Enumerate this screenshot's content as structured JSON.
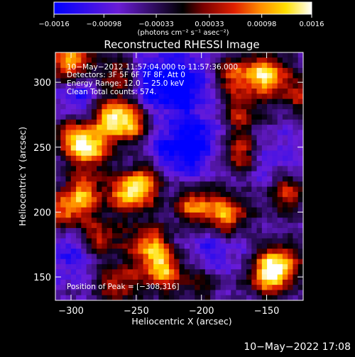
{
  "chart_data": {
    "type": "heatmap",
    "title": "Reconstructed RHESSI Image",
    "xlabel": "Heliocentric X (arcsec)",
    "ylabel": "Heliocentric Y (arcsec)",
    "xlim": [
      -312,
      -122
    ],
    "ylim": [
      132,
      323
    ],
    "x_ticks": [
      -300,
      -250,
      -200,
      -150
    ],
    "x_tick_labels": [
      "−300",
      "−250",
      "−200",
      "−150"
    ],
    "y_ticks": [
      150,
      200,
      250,
      300
    ],
    "y_tick_labels": [
      "150",
      "200",
      "250",
      "300"
    ],
    "colorbar": {
      "ticks": [
        -0.0016,
        -0.00098,
        -0.00033,
        0.00033,
        0.00098,
        0.0016
      ],
      "tick_labels": [
        "−0.0016",
        "−0.00098",
        "−0.00033",
        "0.00033",
        "0.00098",
        "0.0016"
      ],
      "unit_label": "(photons cm⁻² s⁻¹ asec⁻²)",
      "colors": [
        "#0000ff",
        "#6a1cd6",
        "#000000",
        "#7a0000",
        "#e02000",
        "#ff8c00",
        "#ffe000",
        "#ffffff"
      ]
    },
    "annotations": [
      "10−May−2012 11:57:04.000 to 11:57:36.000",
      "Detectors: 3F 5F 6F 7F 8F, Att 0",
      "Energy Range: 12.0 − 25.0 keV",
      "Clean    Total counts: 574.",
      "Position of Peak = [−308,316]"
    ],
    "peak": {
      "x": -308,
      "y": 316
    },
    "bright_sources": [
      {
        "x": -300,
        "y": 315,
        "intensity": 0.95
      },
      {
        "x": -150,
        "y": 305,
        "intensity": 0.95
      },
      {
        "x": -175,
        "y": 305,
        "intensity": 0.6
      },
      {
        "x": -265,
        "y": 305,
        "intensity": 0.65
      },
      {
        "x": -270,
        "y": 275,
        "intensity": 0.85
      },
      {
        "x": -255,
        "y": 268,
        "intensity": 0.75
      },
      {
        "x": -285,
        "y": 250,
        "intensity": 0.9
      },
      {
        "x": -300,
        "y": 258,
        "intensity": 0.6
      },
      {
        "x": -255,
        "y": 215,
        "intensity": 0.9
      },
      {
        "x": -240,
        "y": 225,
        "intensity": 0.6
      },
      {
        "x": -290,
        "y": 215,
        "intensity": 0.7
      },
      {
        "x": -305,
        "y": 200,
        "intensity": 0.7
      },
      {
        "x": -205,
        "y": 205,
        "intensity": 0.75
      },
      {
        "x": -180,
        "y": 198,
        "intensity": 0.85
      },
      {
        "x": -170,
        "y": 245,
        "intensity": 0.7
      },
      {
        "x": -170,
        "y": 275,
        "intensity": 0.5
      },
      {
        "x": -135,
        "y": 215,
        "intensity": 0.6
      },
      {
        "x": -278,
        "y": 180,
        "intensity": 0.65
      },
      {
        "x": -240,
        "y": 175,
        "intensity": 0.75
      },
      {
        "x": -230,
        "y": 155,
        "intensity": 0.85
      },
      {
        "x": -140,
        "y": 160,
        "intensity": 0.8
      },
      {
        "x": -150,
        "y": 150,
        "intensity": 0.7
      },
      {
        "x": -265,
        "y": 145,
        "intensity": 0.6
      },
      {
        "x": -200,
        "y": 145,
        "intensity": 0.4
      },
      {
        "x": -125,
        "y": 290,
        "intensity": 0.45
      }
    ],
    "dim_regions": [
      {
        "x": -215,
        "y": 300,
        "intensity": -0.5
      },
      {
        "x": -240,
        "y": 300,
        "intensity": -0.35
      },
      {
        "x": -205,
        "y": 255,
        "intensity": -0.45
      },
      {
        "x": -225,
        "y": 240,
        "intensity": -0.35
      },
      {
        "x": -290,
        "y": 290,
        "intensity": -0.4
      },
      {
        "x": -190,
        "y": 170,
        "intensity": -0.3
      },
      {
        "x": -300,
        "y": 170,
        "intensity": -0.35
      },
      {
        "x": -150,
        "y": 240,
        "intensity": -0.3
      }
    ]
  },
  "footer": {
    "timestamp": "10−May−2022 17:08"
  }
}
